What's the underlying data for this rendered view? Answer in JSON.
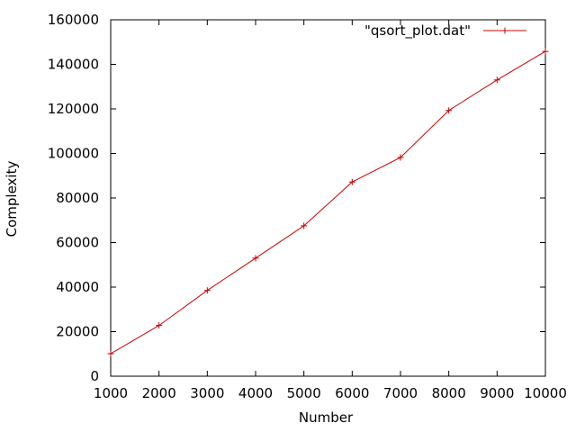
{
  "chart_data": {
    "type": "line",
    "xlabel": "Number",
    "ylabel": "Complexity",
    "xlim": [
      1000,
      10000
    ],
    "ylim": [
      0,
      160000
    ],
    "x_ticks": [
      1000,
      2000,
      3000,
      4000,
      5000,
      6000,
      7000,
      8000,
      9000,
      10000
    ],
    "y_ticks": [
      0,
      20000,
      40000,
      60000,
      80000,
      100000,
      120000,
      140000,
      160000
    ],
    "grid": false,
    "legend_position": "top-right",
    "series": [
      {
        "name": "\"qsort_plot.dat\"",
        "color": "#cc0000",
        "marker": "plus",
        "x": [
          1000,
          2000,
          3000,
          4000,
          5000,
          6000,
          7000,
          8000,
          9000,
          10000
        ],
        "y": [
          10100,
          22800,
          38500,
          53000,
          67500,
          87200,
          98200,
          119300,
          133000,
          145800
        ]
      }
    ]
  }
}
